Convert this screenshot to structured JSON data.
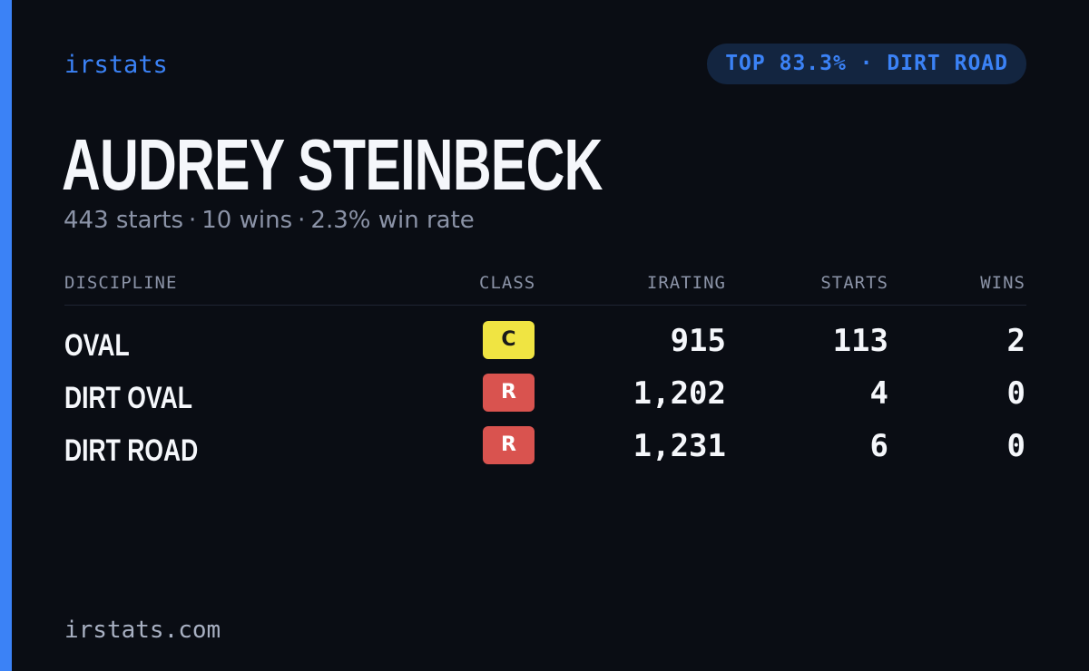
{
  "brand": "irstats",
  "rank_badge": "TOP 83.3% · DIRT ROAD",
  "driver": {
    "name": "AUDREY STEINBECK",
    "starts_text": "443 starts",
    "wins_text": "10 wins",
    "win_rate_text": "2.3% win rate",
    "separator": "·"
  },
  "table": {
    "headers": {
      "discipline": "DISCIPLINE",
      "class": "CLASS",
      "irating": "IRATING",
      "starts": "STARTS",
      "wins": "WINS"
    },
    "rows": [
      {
        "discipline": "OVAL",
        "class": "C",
        "class_bg": "#f0e442",
        "class_fg": "#1a1a1a",
        "irating": "915",
        "starts": "113",
        "wins": "2"
      },
      {
        "discipline": "DIRT OVAL",
        "class": "R",
        "class_bg": "#d9534f",
        "class_fg": "#ffffff",
        "irating": "1,202",
        "starts": "4",
        "wins": "0"
      },
      {
        "discipline": "DIRT ROAD",
        "class": "R",
        "class_bg": "#d9534f",
        "class_fg": "#ffffff",
        "irating": "1,231",
        "starts": "6",
        "wins": "0"
      }
    ]
  },
  "footer": "irstats.com",
  "colors": {
    "accent": "#3b82f6",
    "background": "#0a0d14",
    "pill_bg": "#132540",
    "muted": "#8b93a7",
    "text": "#f5f7fb"
  }
}
